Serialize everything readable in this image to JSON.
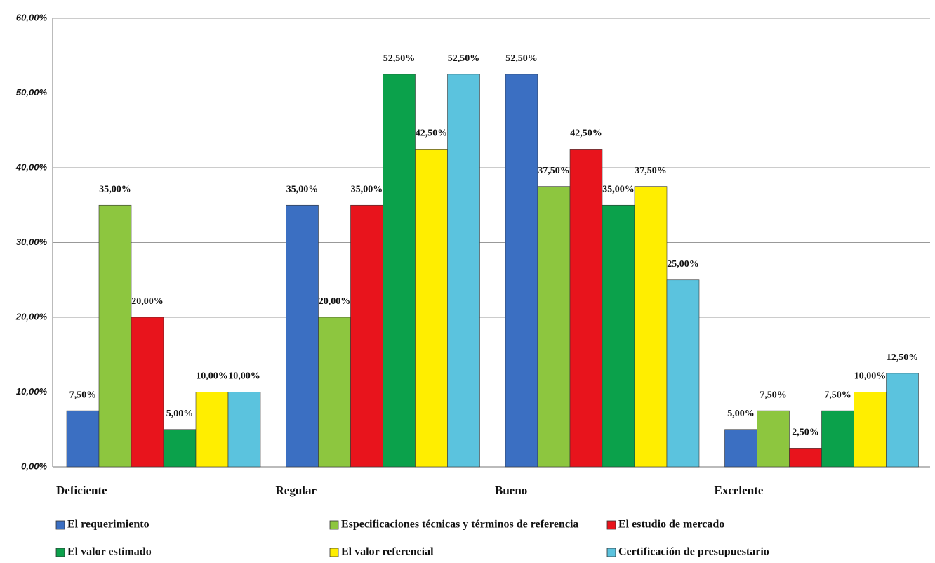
{
  "chart_data": {
    "type": "bar",
    "categories": [
      "Deficiente",
      "Regular",
      "Bueno",
      "Excelente"
    ],
    "series": [
      {
        "name": "El requerimiento",
        "color": "#3b6fc2",
        "values": [
          7.5,
          35,
          52.5,
          5
        ],
        "value_labels": [
          "7,50%",
          "35,00%",
          "52,50%",
          "5,00%"
        ]
      },
      {
        "name": "Especificaciones técnicas y términos de referencia",
        "color": "#8dc63f",
        "values": [
          35,
          20,
          37.5,
          7.5
        ],
        "value_labels": [
          "35,00%",
          "20,00%",
          "37,50%",
          "7,50%"
        ]
      },
      {
        "name": "El estudio de mercado",
        "color": "#e8141c",
        "values": [
          20,
          35,
          42.5,
          2.5
        ],
        "value_labels": [
          "20,00%",
          "35,00%",
          "42,50%",
          "2,50%"
        ]
      },
      {
        "name": "El valor estimado",
        "color": "#0ba14b",
        "values": [
          5,
          52.5,
          35,
          7.5
        ],
        "value_labels": [
          "5,00%",
          "52,50%",
          "35,00%",
          "7,50%"
        ]
      },
      {
        "name": "El valor referencial",
        "color": "#ffee00",
        "values": [
          10,
          42.5,
          37.5,
          10
        ],
        "value_labels": [
          "10,00%",
          "42,50%",
          "37,50%",
          "10,00%"
        ]
      },
      {
        "name": "Certificación de presupuestario",
        "color": "#5bc3de",
        "values": [
          10,
          52.5,
          25,
          12.5
        ],
        "value_labels": [
          "10,00%",
          "52,50%",
          "25,00%",
          "12,50%"
        ]
      }
    ],
    "ylim": [
      0,
      60
    ],
    "yticks": [
      {
        "value": 0,
        "label": "0,00%"
      },
      {
        "value": 10,
        "label": "10,00%"
      },
      {
        "value": 20,
        "label": "20,00%"
      },
      {
        "value": 30,
        "label": "30,00%"
      },
      {
        "value": 40,
        "label": "40,00%"
      },
      {
        "value": 50,
        "label": "50,00%"
      },
      {
        "value": 60,
        "label": "60,00%"
      }
    ],
    "grid": true
  }
}
